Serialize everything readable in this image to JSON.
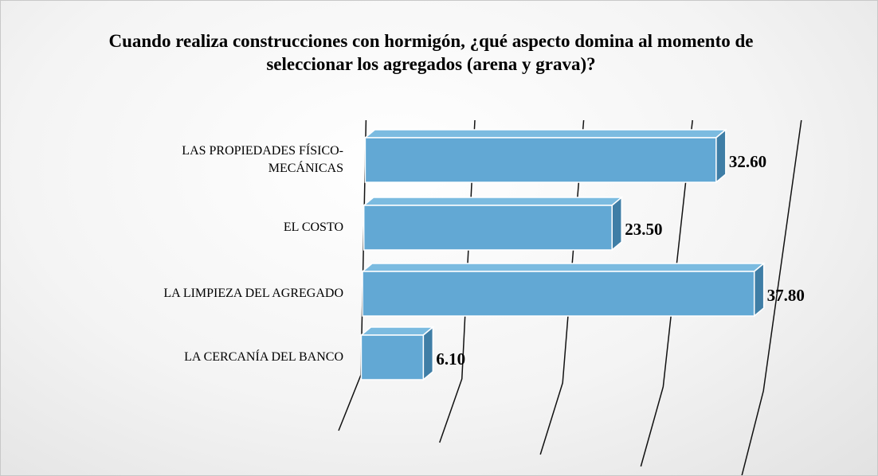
{
  "chart_data": {
    "type": "bar3d_horizontal",
    "title": "Cuando realiza construcciones con hormigón, ¿qué aspecto domina al momento de seleccionar los agregados (arena y grava)?",
    "categories": [
      "LAS PROPIEDADES FÍSICO-MECÁNICAS",
      "EL COSTO",
      "LA LIMPIEZA DEL AGREGADO",
      "LA CERCANÍA DEL BANCO"
    ],
    "values": [
      32.6,
      23.5,
      37.8,
      6.1
    ],
    "value_labels": [
      "32.60",
      "23.50",
      "37.80",
      "6.10"
    ],
    "color": "#62a8d4",
    "xlim": [
      0,
      40
    ],
    "xticks": [
      0,
      10,
      20,
      30,
      40
    ],
    "grid": true
  }
}
